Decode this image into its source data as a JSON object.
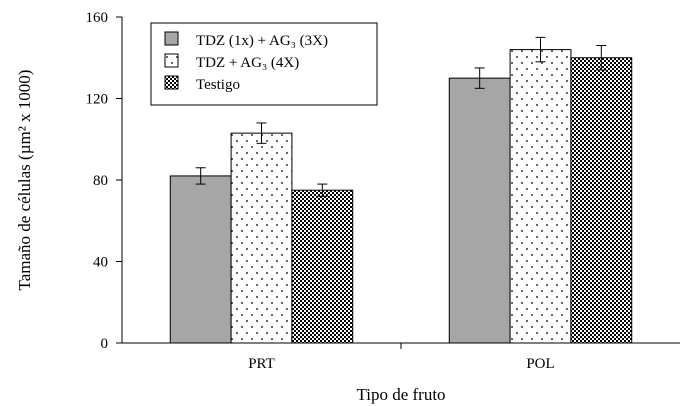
{
  "chart_data": {
    "type": "bar",
    "categories": [
      "PRT",
      "POL"
    ],
    "series": [
      {
        "name": "TDZ (1x) + AG₃ (3X)",
        "values": [
          82,
          130
        ],
        "errors": [
          4,
          5
        ],
        "pattern": "solid-gray"
      },
      {
        "name": "TDZ + AG₃ (4X)",
        "values": [
          103,
          144
        ],
        "errors": [
          5,
          6
        ],
        "pattern": "dots"
      },
      {
        "name": "Testigo",
        "values": [
          75,
          140
        ],
        "errors": [
          3,
          6
        ],
        "pattern": "checker"
      }
    ],
    "xlabel": "Tipo de fruto",
    "ylabel": "Tamaño de células (µm² x 1000)",
    "yticks": [
      "0",
      "40",
      "80",
      "120",
      "160"
    ],
    "ylim": [
      0,
      160
    ],
    "legend_position": "top-left",
    "colors": {
      "solid_gray": "#a6a6a6",
      "ink": "#000000",
      "background": "#ffffff"
    }
  }
}
